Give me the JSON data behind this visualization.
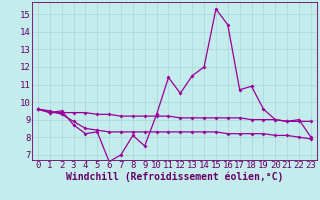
{
  "title": "",
  "xlabel": "Windchill (Refroidissement éolien,°C)",
  "background_color": "#c5eced",
  "grid_color": "#afd8d8",
  "line_color": "#990099",
  "text_color": "#660066",
  "xlim": [
    -0.5,
    23.5
  ],
  "ylim": [
    6.7,
    15.7
  ],
  "yticks": [
    7,
    8,
    9,
    10,
    11,
    12,
    13,
    14,
    15
  ],
  "xticks": [
    0,
    1,
    2,
    3,
    4,
    5,
    6,
    7,
    8,
    9,
    10,
    11,
    12,
    13,
    14,
    15,
    16,
    17,
    18,
    19,
    20,
    21,
    22,
    23
  ],
  "x": [
    0,
    1,
    2,
    3,
    4,
    5,
    6,
    7,
    8,
    9,
    10,
    11,
    12,
    13,
    14,
    15,
    16,
    17,
    18,
    19,
    20,
    21,
    22,
    23
  ],
  "line1": [
    9.6,
    9.4,
    9.5,
    8.7,
    8.2,
    8.3,
    6.6,
    7.0,
    8.1,
    7.5,
    9.3,
    11.4,
    10.5,
    11.5,
    12.0,
    15.3,
    14.4,
    10.7,
    10.9,
    9.6,
    9.0,
    8.9,
    9.0,
    8.0
  ],
  "line2": [
    9.6,
    9.4,
    9.4,
    9.4,
    9.4,
    9.3,
    9.3,
    9.2,
    9.2,
    9.2,
    9.2,
    9.2,
    9.1,
    9.1,
    9.1,
    9.1,
    9.1,
    9.1,
    9.0,
    9.0,
    9.0,
    8.9,
    8.9,
    8.9
  ],
  "line3": [
    9.6,
    9.5,
    9.3,
    8.9,
    8.5,
    8.4,
    8.3,
    8.3,
    8.3,
    8.3,
    8.3,
    8.3,
    8.3,
    8.3,
    8.3,
    8.3,
    8.2,
    8.2,
    8.2,
    8.2,
    8.1,
    8.1,
    8.0,
    7.9
  ],
  "tick_fontsize": 6.5,
  "xlabel_fontsize": 7.0,
  "marker_size": 2.0,
  "linewidth": 0.9
}
